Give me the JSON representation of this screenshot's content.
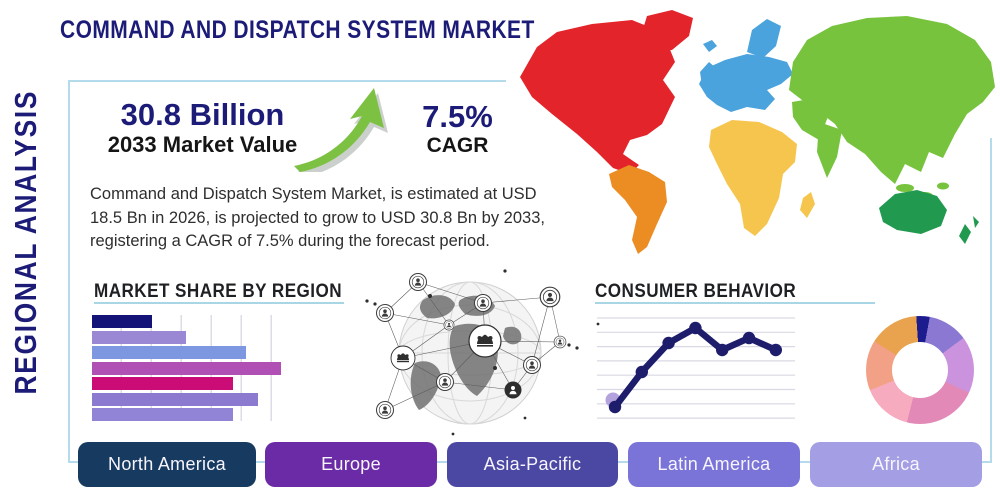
{
  "title": "COMMAND AND DISPATCH SYSTEM MARKET",
  "side_label": "REGIONAL ANALYSIS",
  "stats": {
    "market_value": "30.8 Billion",
    "market_value_caption": "2033 Market Value",
    "cagr_value": "7.5%",
    "cagr_caption": "CAGR"
  },
  "description": "Command and Dispatch System Market, is estimated at USD 18.5 Bn in 2026, is projected to grow to USD 30.8 Bn by 2033, registering a CAGR of 7.5% during the forecast period.",
  "chart_data": [
    {
      "type": "bar",
      "title": "MARKET SHARE BY REGION",
      "orientation": "horizontal",
      "categories": [],
      "values": [
        29,
        45,
        74,
        91,
        68,
        80,
        68
      ],
      "bar_colors": [
        "#131378",
        "#9a88d4",
        "#7d97e0",
        "#b050b5",
        "#cb0b76",
        "#8b7ad0",
        "#9184d6"
      ],
      "xlim": [
        0,
        100
      ],
      "grid": true,
      "legend": false
    },
    {
      "type": "line",
      "title": "CONSUMER BEHAVIOR",
      "x": [
        1,
        2,
        3,
        4,
        5,
        6,
        7
      ],
      "values": [
        1.1,
        4.6,
        7.5,
        9.0,
        6.8,
        8.0,
        6.8
      ],
      "ylim": [
        0,
        10
      ],
      "grid": true,
      "legend": false,
      "line_color": "#1d1d6b",
      "marker_color": "#1d1d6b",
      "first_marker_halo": "#b4a2de"
    },
    {
      "type": "pie",
      "donut": true,
      "values": [
        4,
        12,
        17,
        22,
        15,
        15,
        15
      ],
      "slice_colors": [
        "#1c1c8e",
        "#8a78d2",
        "#cb93de",
        "#e389b8",
        "#f6abbe",
        "#f2a187",
        "#e9a24e"
      ],
      "start_angle_deg": -4,
      "legend": false
    }
  ],
  "map": {
    "region_colors": {
      "north_america": "#e3242b",
      "greenland": "#e3242b",
      "south_america": "#eb8d23",
      "europe": "#4aa3dd",
      "africa": "#f5c54e",
      "asia": "#77c33e",
      "australia": "#219a50"
    }
  },
  "buttons": [
    {
      "label": "North America",
      "color": "#173a60"
    },
    {
      "label": "Europe",
      "color": "#6c2ba6"
    },
    {
      "label": "Asia-Pacific",
      "color": "#4b48a4"
    },
    {
      "label": "Latin America",
      "color": "#7a74d8"
    },
    {
      "label": "Africa",
      "color": "#a49ee4"
    }
  ],
  "accent": {
    "underline": "#a9d6e5",
    "card_border": "#b4dbec",
    "navy": "#1c1c78",
    "arrow_green": "#7cc142"
  }
}
